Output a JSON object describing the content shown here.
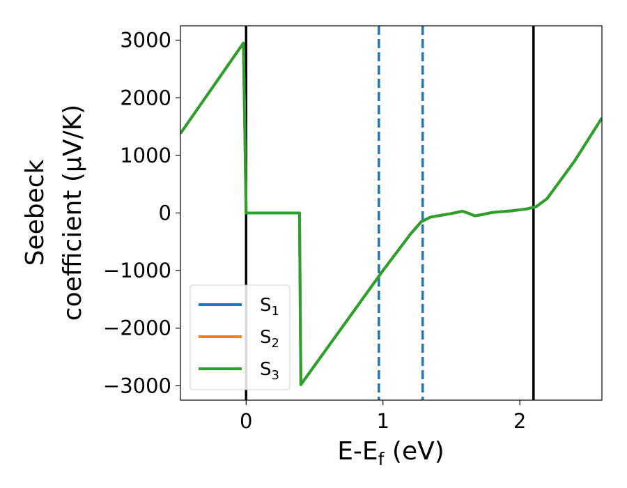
{
  "chart_data": {
    "type": "line",
    "xlabel": "E-E",
    "xlabel_sub": "f",
    "xlabel_unit": " (eV)",
    "ylabel_line1": "Seebeck",
    "ylabel_line2": "coefficient  (μV/K)",
    "xlim": [
      -0.48,
      2.6
    ],
    "ylim": [
      -3250,
      3250
    ],
    "xticks": [
      0,
      1,
      2
    ],
    "xtick_labels": [
      "0",
      "1",
      "2"
    ],
    "yticks": [
      3000,
      2000,
      1000,
      0,
      -1000,
      -2000,
      -3000
    ],
    "ytick_labels": [
      "3000",
      "2000",
      "1000",
      "0",
      "−1000",
      "−2000",
      "−3000"
    ],
    "grid": false,
    "legend_position": "lower-left",
    "series": [
      {
        "name": "S",
        "name_sub": "1",
        "color": "#1f77b4",
        "x": [
          -0.48,
          -0.02,
          0.0,
          0.39,
          0.4,
          1.0,
          1.2,
          1.28,
          1.35,
          1.5,
          1.58,
          1.62,
          1.67,
          1.72,
          1.8,
          1.95,
          2.05,
          2.12,
          2.2,
          2.4,
          2.6
        ],
        "y": [
          1380,
          2950,
          0,
          0,
          -2980,
          -1000,
          -370,
          -150,
          -70,
          -10,
          30,
          0,
          -50,
          -30,
          10,
          40,
          70,
          110,
          250,
          900,
          1650
        ]
      },
      {
        "name": "S",
        "name_sub": "2",
        "color": "#ff7f0e",
        "x": [
          -0.48,
          -0.02,
          0.0,
          0.39,
          0.4,
          1.0,
          1.2,
          1.28,
          1.35,
          1.5,
          1.58,
          1.62,
          1.67,
          1.72,
          1.8,
          1.95,
          2.05,
          2.12,
          2.2,
          2.4,
          2.6
        ],
        "y": [
          1380,
          2950,
          0,
          0,
          -2980,
          -1000,
          -370,
          -150,
          -70,
          -10,
          30,
          0,
          -50,
          -30,
          10,
          40,
          70,
          110,
          250,
          900,
          1650
        ]
      },
      {
        "name": "S",
        "name_sub": "3",
        "color": "#2ca02c",
        "x": [
          -0.48,
          -0.02,
          0.0,
          0.39,
          0.4,
          1.0,
          1.2,
          1.28,
          1.35,
          1.5,
          1.58,
          1.62,
          1.67,
          1.72,
          1.8,
          1.95,
          2.05,
          2.12,
          2.2,
          2.4,
          2.6
        ],
        "y": [
          1380,
          2950,
          0,
          0,
          -2980,
          -1000,
          -370,
          -150,
          -70,
          -10,
          30,
          0,
          -50,
          -30,
          10,
          40,
          70,
          110,
          250,
          900,
          1650
        ]
      }
    ],
    "vertical_lines": [
      {
        "x": 0.0,
        "style": "solid",
        "color": "#000000"
      },
      {
        "x": 2.1,
        "style": "solid",
        "color": "#000000"
      },
      {
        "x": 0.97,
        "style": "dashed",
        "color": "#1f77b4"
      },
      {
        "x": 1.29,
        "style": "dashed",
        "color": "#1f77b4"
      }
    ]
  }
}
